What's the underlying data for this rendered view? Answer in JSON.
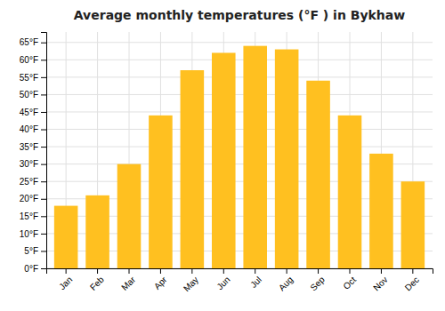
{
  "chart_data": {
    "type": "bar",
    "title": "Average monthly temperatures (°F ) in Bykhaw",
    "categories": [
      "Jan",
      "Feb",
      "Mar",
      "Apr",
      "May",
      "Jun",
      "Jul",
      "Aug",
      "Sep",
      "Oct",
      "Nov",
      "Dec"
    ],
    "values": [
      18,
      21,
      30,
      44,
      57,
      62,
      64,
      63,
      54,
      44,
      33,
      25
    ],
    "color": "#FFC020",
    "ylim": [
      0,
      68
    ],
    "yticks": [
      {
        "value": 0,
        "label": "0°F"
      },
      {
        "value": 5,
        "label": "5°F"
      },
      {
        "value": 10,
        "label": "10°F"
      },
      {
        "value": 15,
        "label": "15°F"
      },
      {
        "value": 20,
        "label": "20°F"
      },
      {
        "value": 25,
        "label": "25°F"
      },
      {
        "value": 30,
        "label": "30°F"
      },
      {
        "value": 35,
        "label": "35°F"
      },
      {
        "value": 40,
        "label": "40°F"
      },
      {
        "value": 45,
        "label": "45°F"
      },
      {
        "value": 50,
        "label": "50°F"
      },
      {
        "value": 55,
        "label": "55°F"
      },
      {
        "value": 60,
        "label": "60°F"
      },
      {
        "value": 65,
        "label": "65°F"
      }
    ],
    "grid": true
  }
}
